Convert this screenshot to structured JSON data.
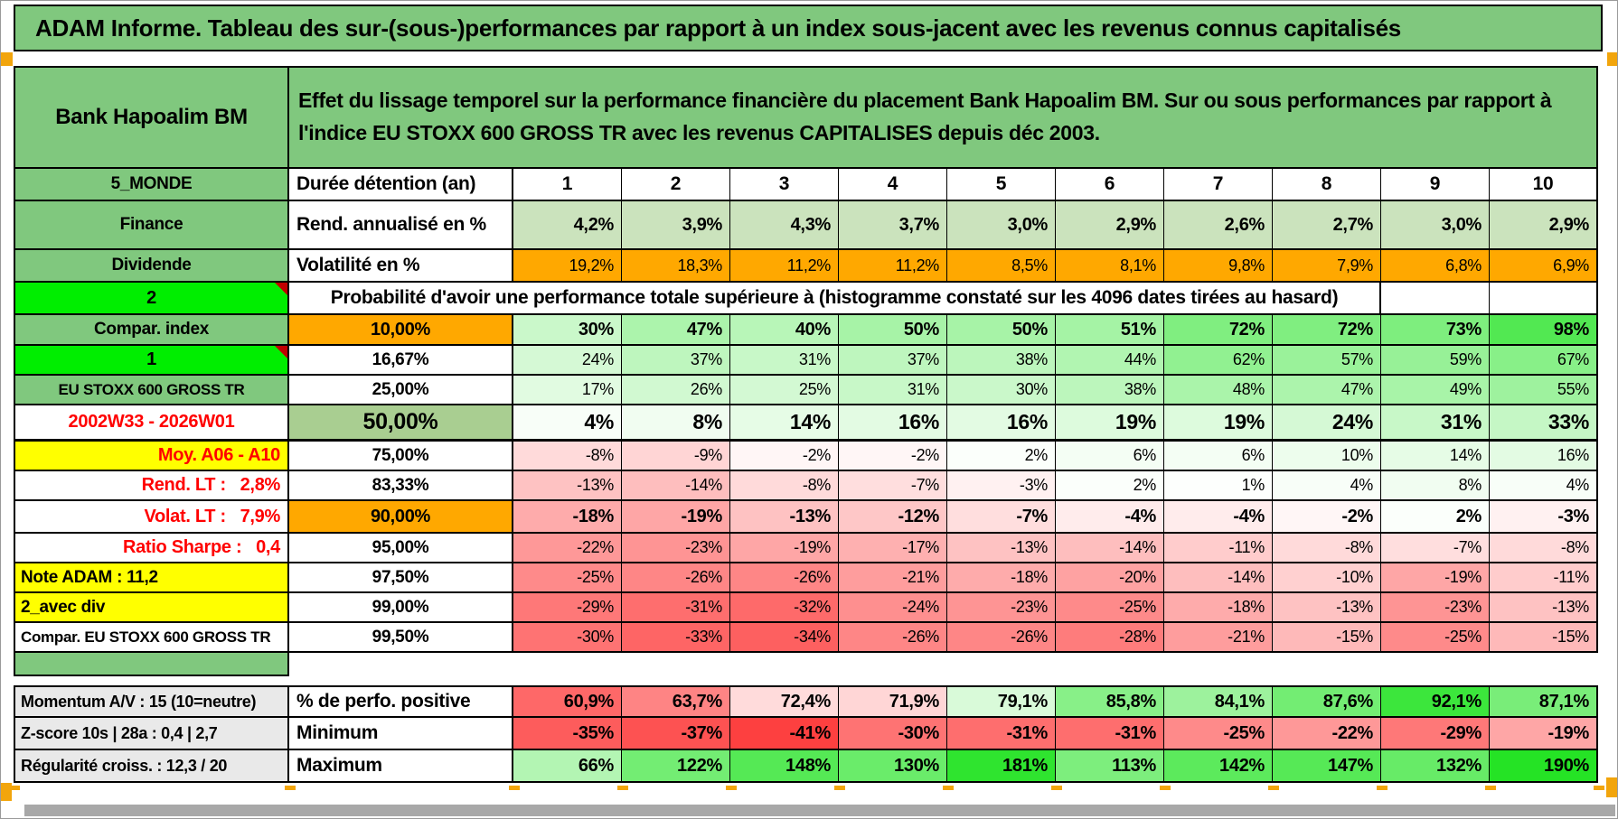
{
  "window": {
    "title": "ADAM Informe. Tableau des sur-(sous-)performances par rapport à un index sous-jacent avec les revenus connus capitalisés"
  },
  "colors": {
    "banner_green": "#80C87E",
    "light_green_data": "#CBE3BD",
    "orange": "#FFA800",
    "bright_green": "#00EE00",
    "yellow": "#FFFF00",
    "gray_label": "#E9E9E9",
    "mid_green_50": "#A9CE91",
    "neg_color": "#FD2D2D",
    "pos_color": "#19E119"
  },
  "scales": {
    "prob": {
      "min": -45,
      "mid": 0,
      "max": 130
    },
    "perfo": {
      "min": 55,
      "mid": 76,
      "max": 95
    },
    "max": {
      "min": -45,
      "mid": 0,
      "max": 200
    }
  },
  "table": {
    "rows": [
      {
        "name": "header",
        "size": "head",
        "label": "Bank Hapoalim BM",
        "label_cls": "lab-green lab-big",
        "merge": "Effet du lissage temporel sur la performance financière du placement Bank Hapoalim BM. Sur ou sous performances par rapport à l'indice EU STOXX 600 GROSS TR avec les revenus CAPITALISES depuis déc 2003.",
        "merge_cls": "m-desc",
        "merge_span": 11,
        "tail": 0
      },
      {
        "name": "duration-header",
        "size": "md",
        "label": "5_MONDE",
        "label_cls": "lab-green",
        "col2": "Durée détention (an)",
        "col2_cls": "c2-text",
        "cells": [
          "1",
          "2",
          "3",
          "4",
          "5",
          "6",
          "7",
          "8",
          "9",
          "10"
        ],
        "cells_cls": "d-colhdr"
      },
      {
        "name": "annualized-return",
        "size": "xl",
        "label": "Finance",
        "label_cls": "lab-green",
        "col2": "Rend. annualisé en %",
        "col2_cls": "c2-text",
        "cells": [
          "4,2%",
          "3,9%",
          "4,3%",
          "3,7%",
          "3,0%",
          "2,9%",
          "2,6%",
          "2,7%",
          "3,0%",
          "2,9%"
        ],
        "cells_cls": "d-bold",
        "cell_bg": "#CBE3BD"
      },
      {
        "name": "volatility",
        "size": "md",
        "label": "Dividende",
        "label_cls": "lab-green",
        "col2": "Volatilité en %",
        "col2_cls": "c2-text",
        "cells": [
          "19,2%",
          "18,3%",
          "11,2%",
          "11,2%",
          "8,5%",
          "8,1%",
          "9,8%",
          "7,9%",
          "6,8%",
          "6,9%"
        ],
        "cells_cls": "d-norm",
        "cell_bg": "#FFA800"
      },
      {
        "name": "probability-header",
        "size": "md",
        "label": "2",
        "label_cls": "lab-bright",
        "corner": true,
        "merge": "Probabilité d'avoir une performance totale supérieure à (histogramme constaté sur les 4096 dates tirées au hasard)",
        "merge_cls": "m-prob",
        "merge_span": 9,
        "tail": 2
      },
      {
        "name": "quantile-10",
        "size": "sm2",
        "label": "Compar. index",
        "label_cls": "lab-green",
        "col2": "10,00%",
        "col2_cls": "c2-orange",
        "cells": [
          "30%",
          "47%",
          "40%",
          "50%",
          "50%",
          "51%",
          "72%",
          "72%",
          "73%",
          "98%"
        ],
        "cells_cls": "d-bold",
        "scale": "prob"
      },
      {
        "name": "quantile-16",
        "size": "sm",
        "label": "1",
        "label_cls": "lab-bright",
        "corner": true,
        "col2": "16,67%",
        "col2_cls": "c2-pct",
        "cells": [
          "24%",
          "37%",
          "31%",
          "37%",
          "38%",
          "44%",
          "62%",
          "57%",
          "59%",
          "67%"
        ],
        "cells_cls": "d-norm",
        "scale": "prob"
      },
      {
        "name": "quantile-25",
        "size": "sm",
        "label": "EU STOXX 600 GROSS TR",
        "label_cls": "lab-green lab-sm",
        "col2": "25,00%",
        "col2_cls": "c2-pct",
        "cells": [
          "17%",
          "26%",
          "25%",
          "31%",
          "30%",
          "38%",
          "48%",
          "47%",
          "49%",
          "55%"
        ],
        "cells_cls": "d-norm",
        "scale": "prob"
      },
      {
        "name": "quantile-50",
        "size": "lg",
        "label": "2002W33 - 2026W01",
        "label_cls": "lab-white-red",
        "thick": true,
        "col2": "50,00%",
        "col2_cls": "c2-green-big",
        "cells": [
          "4%",
          "8%",
          "14%",
          "16%",
          "16%",
          "19%",
          "19%",
          "24%",
          "31%",
          "33%"
        ],
        "cells_cls": "d-big",
        "scale": "prob"
      },
      {
        "name": "quantile-75",
        "size": "sm",
        "label": "Moy. A06 - A10",
        "label_cls": "lab-yellow-red lab-right",
        "col2": "75,00%",
        "col2_cls": "c2-pct",
        "cells": [
          "-8%",
          "-9%",
          "-2%",
          "-2%",
          "2%",
          "6%",
          "6%",
          "10%",
          "14%",
          "16%"
        ],
        "cells_cls": "d-norm",
        "scale": "prob"
      },
      {
        "name": "quantile-83",
        "size": "sm",
        "label": "Rend. LT :   2,8%",
        "label_cls": "lab-white-red lab-right",
        "col2": "83,33%",
        "col2_cls": "c2-pct",
        "cells": [
          "-13%",
          "-14%",
          "-8%",
          "-7%",
          "-3%",
          "2%",
          "1%",
          "4%",
          "8%",
          "4%"
        ],
        "cells_cls": "d-norm",
        "scale": "prob"
      },
      {
        "name": "quantile-90",
        "size": "md",
        "label": "Volat. LT :   7,9%",
        "label_cls": "lab-white-red lab-right",
        "col2": "90,00%",
        "col2_cls": "c2-orange",
        "cells": [
          "-18%",
          "-19%",
          "-13%",
          "-12%",
          "-7%",
          "-4%",
          "-4%",
          "-2%",
          "2%",
          "-3%"
        ],
        "cells_cls": "d-bold",
        "scale": "prob"
      },
      {
        "name": "quantile-95",
        "size": "sm",
        "label": "Ratio Sharpe :   0,4",
        "label_cls": "lab-white-red lab-right",
        "col2": "95,00%",
        "col2_cls": "c2-pct",
        "cells": [
          "-22%",
          "-23%",
          "-19%",
          "-17%",
          "-13%",
          "-14%",
          "-11%",
          "-8%",
          "-7%",
          "-8%"
        ],
        "cells_cls": "d-norm",
        "scale": "prob"
      },
      {
        "name": "quantile-97",
        "size": "sm",
        "label": "Note ADAM : 11,2",
        "label_cls": "lab-yellow lab-left",
        "col2": "97,50%",
        "col2_cls": "c2-pct",
        "cells": [
          "-25%",
          "-26%",
          "-26%",
          "-21%",
          "-18%",
          "-20%",
          "-14%",
          "-10%",
          "-19%",
          "-11%"
        ],
        "cells_cls": "d-norm",
        "scale": "prob"
      },
      {
        "name": "quantile-99",
        "size": "sm",
        "label": "2_avec div",
        "label_cls": "lab-yellow lab-left",
        "col2": "99,00%",
        "col2_cls": "c2-pct",
        "cells": [
          "-29%",
          "-31%",
          "-32%",
          "-24%",
          "-23%",
          "-25%",
          "-18%",
          "-13%",
          "-23%",
          "-13%"
        ],
        "cells_cls": "d-norm",
        "scale": "prob"
      },
      {
        "name": "quantile-995",
        "size": "sm",
        "label": "Compar. EU STOXX 600 GROSS TR",
        "label_cls": "lab-white lab-left lab-sm",
        "col2": "99,50%",
        "col2_cls": "c2-pct",
        "cells": [
          "-30%",
          "-33%",
          "-34%",
          "-26%",
          "-26%",
          "-28%",
          "-21%",
          "-15%",
          "-25%",
          "-15%"
        ],
        "cells_cls": "d-norm",
        "scale": "prob"
      },
      {
        "name": "separator",
        "size": "xs",
        "label": "",
        "label_cls": "lab-green",
        "sep": true
      },
      {
        "name": "spacer",
        "size": "gap",
        "gap": true
      },
      {
        "name": "pct-positive",
        "size": "md",
        "label": "Momentum A/V : 15 (10=neutre)",
        "label_cls": "lab-gray lab-left",
        "top": true,
        "col2": "% de perfo. positive",
        "col2_cls": "c2-text",
        "cells": [
          "60,9%",
          "63,7%",
          "72,4%",
          "71,9%",
          "79,1%",
          "85,8%",
          "84,1%",
          "87,6%",
          "92,1%",
          "87,1%"
        ],
        "cells_cls": "d-bold",
        "scale": "perfo"
      },
      {
        "name": "minimum",
        "size": "md",
        "label": "Z-score 10s | 28a : 0,4 | 2,7",
        "label_cls": "lab-gray lab-left",
        "col2": "Minimum",
        "col2_cls": "c2-text",
        "cells": [
          "-35%",
          "-37%",
          "-41%",
          "-30%",
          "-31%",
          "-31%",
          "-25%",
          "-22%",
          "-29%",
          "-19%"
        ],
        "cells_cls": "d-bold",
        "scale": "prob"
      },
      {
        "name": "maximum",
        "size": "md",
        "label": "Régularité croiss. : 12,3 / 20",
        "label_cls": "lab-gray lab-left",
        "col2": "Maximum",
        "col2_cls": "c2-text",
        "cells": [
          "66%",
          "122%",
          "148%",
          "130%",
          "181%",
          "113%",
          "142%",
          "147%",
          "132%",
          "190%"
        ],
        "cells_cls": "d-bold",
        "scale": "max"
      }
    ]
  }
}
